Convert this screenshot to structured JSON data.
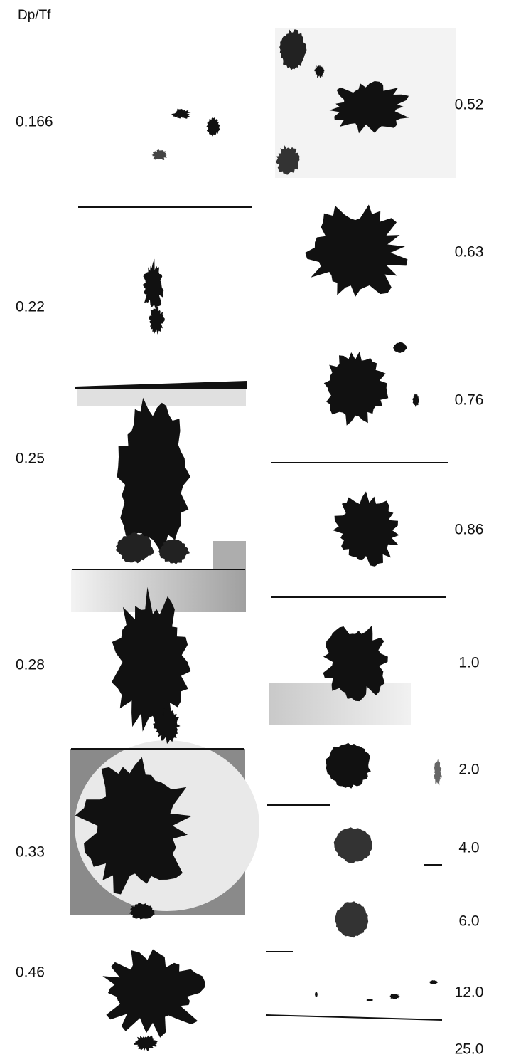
{
  "figure": {
    "header": "Dp/Tf",
    "left_labels": [
      "0.166",
      "0.22",
      "0.25",
      "0.28",
      "0.33",
      "0.46"
    ],
    "right_labels": [
      "0.52",
      "0.63",
      "0.76",
      "0.86",
      "1.0",
      "2.0",
      "4.0",
      "6.0",
      "12.0",
      "25.0"
    ]
  }
}
